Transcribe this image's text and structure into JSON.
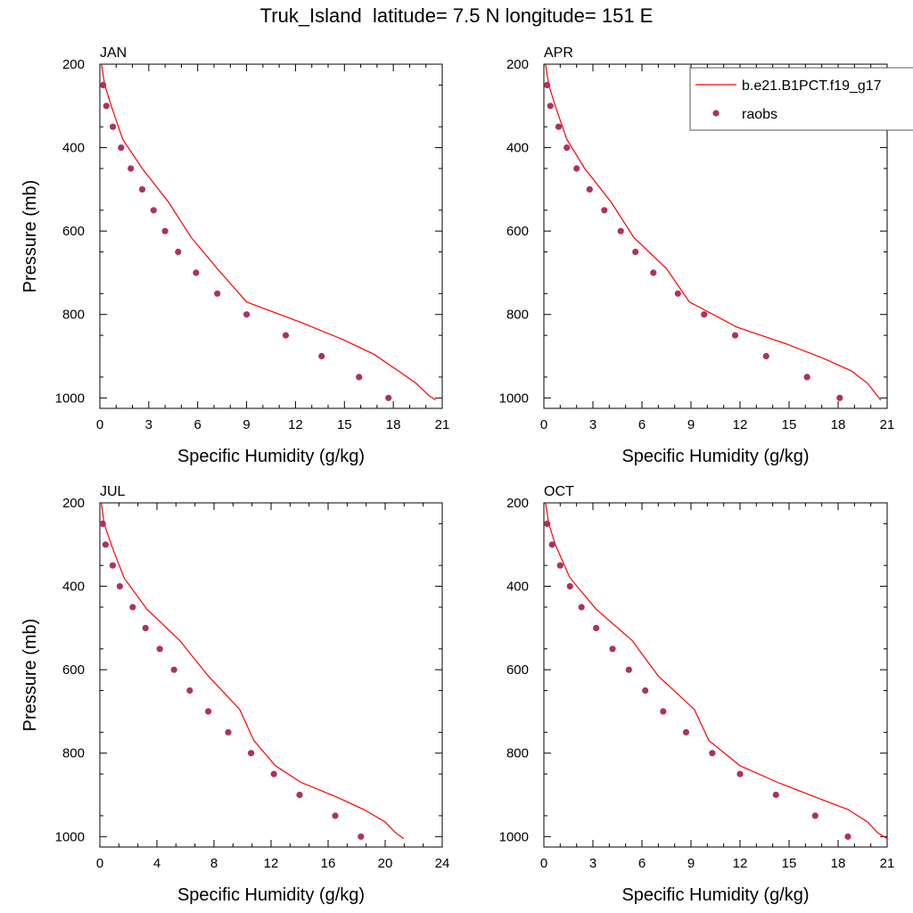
{
  "title": "Truk_Island  latitude= 7.5 N longitude= 151 E",
  "colors": {
    "model_line": "#ff0000",
    "obs_marker": "#b03060",
    "axis": "#000000"
  },
  "legend": {
    "placement": "top-right of APR panel",
    "entries": [
      {
        "label": "b.e21.B1PCT.f19_g17",
        "style": "line",
        "color": "#ff0000"
      },
      {
        "label": "raobs",
        "style": "marker",
        "color": "#b03060"
      }
    ]
  },
  "chart_data": [
    {
      "panel": "JAN",
      "type": "line",
      "xlabel": "Specific Humidity (g/kg)",
      "ylabel": "Pressure (mb)",
      "xlim": [
        0,
        21
      ],
      "ylim": [
        200,
        1025
      ],
      "y_inverted": true,
      "xticks": [
        0,
        3,
        6,
        9,
        12,
        15,
        18,
        21
      ],
      "yticks": [
        200,
        400,
        600,
        800,
        1000
      ],
      "series": [
        {
          "name": "b.e21.B1PCT.f19_g17",
          "kind": "line",
          "x": [
            0.1,
            0.3,
            0.7,
            1.4,
            2.6,
            4.2,
            5.6,
            7.2,
            9.0,
            12.4,
            14.9,
            16.8,
            18.3,
            19.4,
            20.2,
            20.6
          ],
          "y": [
            200,
            250,
            300,
            380,
            450,
            530,
            615,
            690,
            770,
            820,
            860,
            895,
            935,
            965,
            995,
            1005
          ]
        },
        {
          "name": "raobs",
          "kind": "scatter",
          "x": [
            0.2,
            0.4,
            0.8,
            1.3,
            1.9,
            2.6,
            3.3,
            4.0,
            4.8,
            5.9,
            7.2,
            9.0,
            11.4,
            13.6,
            15.9,
            17.7
          ],
          "y": [
            250,
            300,
            350,
            400,
            450,
            500,
            550,
            600,
            650,
            700,
            750,
            800,
            850,
            900,
            950,
            1000
          ]
        }
      ]
    },
    {
      "panel": "APR",
      "type": "line",
      "xlabel": "Specific Humidity (g/kg)",
      "ylabel": "",
      "xlim": [
        0,
        21
      ],
      "ylim": [
        200,
        1025
      ],
      "y_inverted": true,
      "xticks": [
        0,
        3,
        6,
        9,
        12,
        15,
        18,
        21
      ],
      "yticks": [
        200,
        400,
        600,
        800,
        1000
      ],
      "series": [
        {
          "name": "b.e21.B1PCT.f19_g17",
          "kind": "line",
          "x": [
            0.1,
            0.3,
            0.7,
            1.4,
            2.5,
            4.1,
            5.5,
            7.5,
            8.9,
            11.8,
            14.8,
            17.1,
            18.8,
            19.8,
            20.3,
            20.6
          ],
          "y": [
            200,
            250,
            300,
            380,
            450,
            530,
            615,
            690,
            770,
            830,
            870,
            905,
            935,
            965,
            990,
            1005
          ]
        },
        {
          "name": "raobs",
          "kind": "scatter",
          "x": [
            0.2,
            0.4,
            0.9,
            1.4,
            2.0,
            2.8,
            3.7,
            4.7,
            5.6,
            6.7,
            8.2,
            9.8,
            11.7,
            13.6,
            16.1,
            18.1
          ],
          "y": [
            250,
            300,
            350,
            400,
            450,
            500,
            550,
            600,
            650,
            700,
            750,
            800,
            850,
            900,
            950,
            1000
          ]
        }
      ]
    },
    {
      "panel": "JUL",
      "type": "line",
      "xlabel": "Specific Humidity (g/kg)",
      "ylabel": "Pressure (mb)",
      "xlim": [
        0,
        24
      ],
      "ylim": [
        200,
        1025
      ],
      "y_inverted": true,
      "xticks": [
        0,
        4,
        8,
        12,
        16,
        20,
        24
      ],
      "yticks": [
        200,
        400,
        600,
        800,
        1000
      ],
      "series": [
        {
          "name": "b.e21.B1PCT.f19_g17",
          "kind": "line",
          "x": [
            0.1,
            0.3,
            0.8,
            1.7,
            3.3,
            5.6,
            7.6,
            9.8,
            10.8,
            12.3,
            14.1,
            16.6,
            18.5,
            20.0,
            20.7,
            21.3
          ],
          "y": [
            200,
            250,
            300,
            380,
            455,
            530,
            615,
            695,
            770,
            830,
            870,
            905,
            935,
            965,
            990,
            1005
          ]
        },
        {
          "name": "raobs",
          "kind": "scatter",
          "x": [
            0.2,
            0.4,
            0.9,
            1.4,
            2.3,
            3.2,
            4.2,
            5.2,
            6.3,
            7.6,
            9.0,
            10.6,
            12.2,
            14.0,
            16.5,
            18.3
          ],
          "y": [
            250,
            300,
            350,
            400,
            450,
            500,
            550,
            600,
            650,
            700,
            750,
            800,
            850,
            900,
            950,
            1000
          ]
        }
      ]
    },
    {
      "panel": "OCT",
      "type": "line",
      "xlabel": "Specific Humidity (g/kg)",
      "ylabel": "",
      "xlim": [
        0,
        21
      ],
      "ylim": [
        200,
        1025
      ],
      "y_inverted": true,
      "xticks": [
        0,
        3,
        6,
        9,
        12,
        15,
        18,
        21
      ],
      "yticks": [
        200,
        400,
        600,
        800,
        1000
      ],
      "series": [
        {
          "name": "b.e21.B1PCT.f19_g17",
          "kind": "line",
          "x": [
            0.1,
            0.3,
            0.7,
            1.6,
            3.2,
            5.4,
            7.0,
            9.2,
            10.1,
            12.0,
            14.3,
            16.6,
            18.6,
            19.8,
            20.4,
            21.0
          ],
          "y": [
            200,
            250,
            300,
            380,
            455,
            530,
            615,
            695,
            770,
            830,
            870,
            905,
            935,
            965,
            990,
            1005
          ]
        },
        {
          "name": "raobs",
          "kind": "scatter",
          "x": [
            0.2,
            0.5,
            1.0,
            1.6,
            2.3,
            3.2,
            4.2,
            5.2,
            6.2,
            7.3,
            8.7,
            10.3,
            12.0,
            14.2,
            16.6,
            18.6
          ],
          "y": [
            250,
            300,
            350,
            400,
            450,
            500,
            550,
            600,
            650,
            700,
            750,
            800,
            850,
            900,
            950,
            1000
          ]
        }
      ]
    }
  ]
}
